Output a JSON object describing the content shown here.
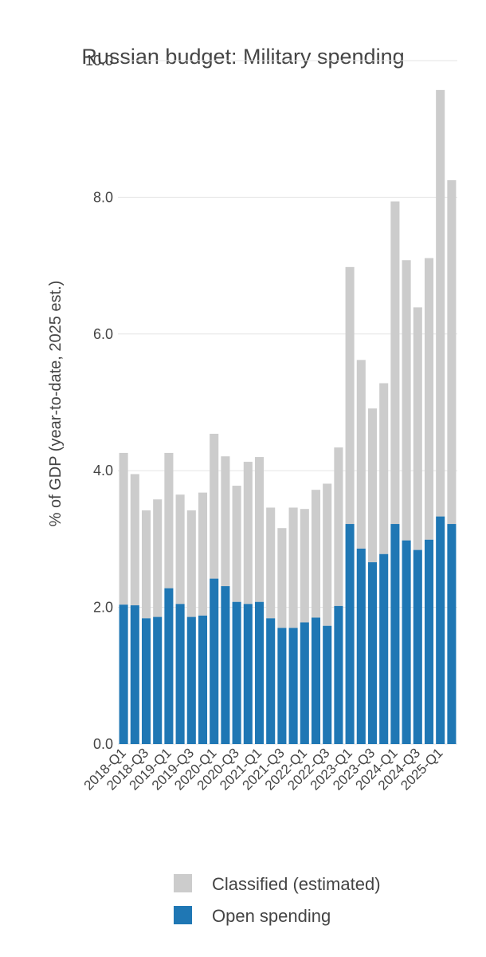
{
  "chart_data": {
    "type": "bar",
    "stacked": true,
    "title": "Russian budget: Military spending",
    "ylabel": "% of GDP (year-to-date, 2025 est.)",
    "xlabel": "",
    "ylim": [
      0,
      10
    ],
    "yticks": [
      "0.0",
      "2.0",
      "4.0",
      "6.0",
      "8.0",
      "10.0"
    ],
    "grid": true,
    "legend_position": "bottom",
    "categories": [
      "2018-Q1",
      "2018-Q2",
      "2018-Q3",
      "2018-Q4",
      "2019-Q1",
      "2019-Q2",
      "2019-Q3",
      "2019-Q4",
      "2020-Q1",
      "2020-Q2",
      "2020-Q3",
      "2020-Q4",
      "2021-Q1",
      "2021-Q2",
      "2021-Q3",
      "2021-Q4",
      "2022-Q1",
      "2022-Q2",
      "2022-Q3",
      "2022-Q4",
      "2023-Q1",
      "2023-Q2",
      "2023-Q3",
      "2023-Q4",
      "2024-Q1",
      "2024-Q2",
      "2024-Q3",
      "2024-Q4",
      "2025-Q1",
      "2025-Q2"
    ],
    "tick_labels": [
      "2018-Q1",
      "2018-Q3",
      "2019-Q1",
      "2019-Q3",
      "2020-Q1",
      "2020-Q3",
      "2021-Q1",
      "2021-Q3",
      "2022-Q1",
      "2022-Q3",
      "2023-Q1",
      "2023-Q3",
      "2024-Q1",
      "2024-Q3",
      "2025-Q1"
    ],
    "series": [
      {
        "name": "Open spending",
        "color": "#1f77b4",
        "values": [
          2.04,
          2.03,
          1.84,
          1.86,
          2.28,
          2.05,
          1.86,
          1.88,
          2.42,
          2.31,
          2.08,
          2.05,
          2.08,
          1.84,
          1.7,
          1.7,
          1.78,
          1.85,
          1.73,
          2.02,
          3.22,
          2.86,
          2.66,
          2.78,
          3.22,
          2.98,
          2.84,
          2.99,
          3.33,
          3.22
        ]
      },
      {
        "name": "Classified (estimated)",
        "color": "#cccccc",
        "values": [
          2.22,
          1.92,
          1.58,
          1.72,
          1.98,
          1.6,
          1.56,
          1.8,
          2.12,
          1.9,
          1.7,
          2.08,
          2.12,
          1.62,
          1.46,
          1.76,
          1.66,
          1.87,
          2.08,
          2.32,
          3.76,
          2.76,
          2.25,
          2.5,
          4.72,
          4.1,
          3.55,
          4.12,
          6.24,
          5.03
        ]
      }
    ],
    "legend": [
      {
        "label": "Classified (estimated)",
        "color": "#cccccc"
      },
      {
        "label": "Open spending",
        "color": "#1f77b4"
      }
    ]
  }
}
